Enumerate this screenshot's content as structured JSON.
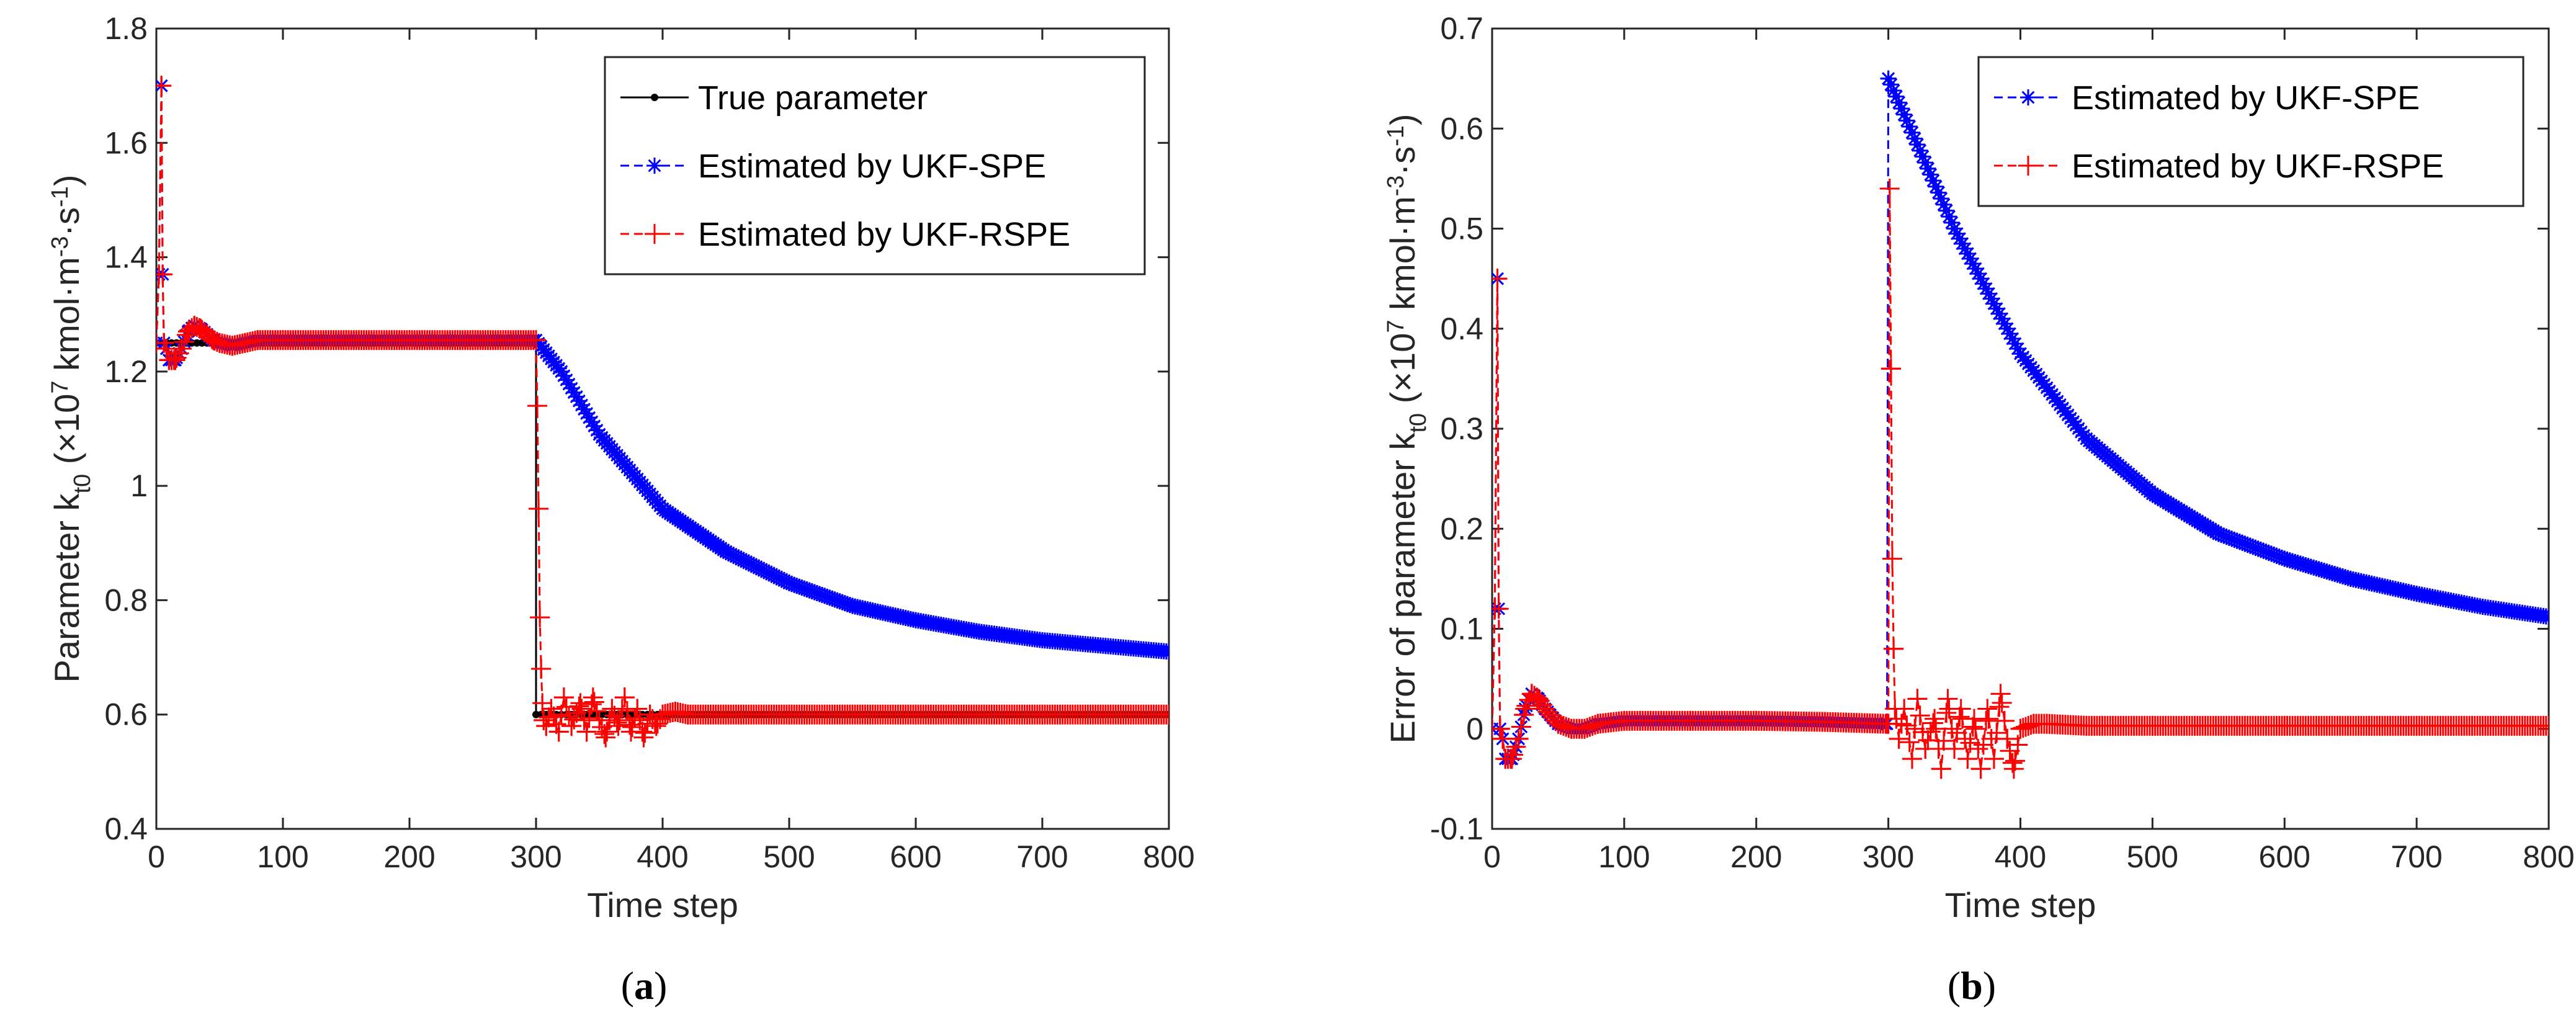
{
  "colors": {
    "true": "#000000",
    "spe": "#0000ff",
    "rspe": "#ff0000"
  },
  "chart_data": [
    {
      "type": "line",
      "panel_label": "a",
      "xlabel": "Time step",
      "ylabel": "Parameter k",
      "ylabel_sub": "t0",
      "ylabel_units": " (×10",
      "ylabel_exp": "7",
      "ylabel_units2": " kmol·m",
      "ylabel_exp2": "-3",
      "ylabel_units3": "·s",
      "ylabel_exp3": "-1",
      "ylabel_close": ")",
      "xlim": [
        0,
        800
      ],
      "ylim": [
        0.4,
        1.8
      ],
      "xticks": [
        0,
        100,
        200,
        300,
        400,
        500,
        600,
        700,
        800
      ],
      "yticks": [
        0.4,
        0.6,
        0.8,
        1,
        1.2,
        1.4,
        1.6,
        1.8
      ],
      "xtick_labels": [
        "0",
        "100",
        "200",
        "300",
        "400",
        "500",
        "600",
        "700",
        "800"
      ],
      "ytick_labels": [
        "0.4",
        "0.6",
        "0.8",
        "1",
        "1.2",
        "1.4",
        "1.6",
        "1.8"
      ],
      "legend_position": "top-right",
      "series": [
        {
          "name": "True parameter",
          "style": "true",
          "x": [
            0,
            300,
            300,
            800
          ],
          "y": [
            1.25,
            1.25,
            0.6,
            0.6
          ]
        },
        {
          "name": "Estimated by UKF-SPE",
          "style": "spe",
          "x": [
            0,
            2,
            4,
            5,
            6,
            8,
            10,
            15,
            20,
            25,
            30,
            35,
            40,
            45,
            50,
            60,
            70,
            80,
            100,
            150,
            200,
            250,
            300,
            320,
            350,
            400,
            450,
            500,
            550,
            600,
            650,
            700,
            750,
            800
          ],
          "y": [
            1.25,
            1.37,
            1.7,
            1.37,
            1.25,
            1.24,
            1.22,
            1.22,
            1.24,
            1.27,
            1.28,
            1.275,
            1.265,
            1.255,
            1.25,
            1.245,
            1.25,
            1.255,
            1.255,
            1.255,
            1.255,
            1.255,
            1.255,
            1.2,
            1.09,
            0.96,
            0.885,
            0.83,
            0.79,
            0.765,
            0.745,
            0.73,
            0.72,
            0.71
          ]
        },
        {
          "name": "Estimated by UKF-RSPE",
          "style": "rspe",
          "x": [
            0,
            2,
            4,
            5,
            6,
            8,
            10,
            15,
            20,
            25,
            30,
            35,
            40,
            45,
            50,
            60,
            70,
            80,
            100,
            150,
            200,
            250,
            300,
            301,
            302,
            303,
            304,
            305,
            306,
            308,
            312,
            318,
            322,
            328,
            335,
            340,
            345,
            350,
            355,
            360,
            365,
            370,
            375,
            380,
            385,
            390,
            395,
            400,
            410,
            420,
            450,
            500,
            600,
            700,
            800
          ],
          "y": [
            1.25,
            1.37,
            1.7,
            1.37,
            1.25,
            1.24,
            1.22,
            1.22,
            1.24,
            1.27,
            1.28,
            1.275,
            1.265,
            1.255,
            1.25,
            1.245,
            1.25,
            1.255,
            1.255,
            1.255,
            1.255,
            1.255,
            1.255,
            1.14,
            0.96,
            0.77,
            0.68,
            0.62,
            0.59,
            0.58,
            0.61,
            0.57,
            0.63,
            0.58,
            0.62,
            0.57,
            0.63,
            0.59,
            0.56,
            0.61,
            0.58,
            0.63,
            0.57,
            0.61,
            0.56,
            0.6,
            0.58,
            0.6,
            0.605,
            0.6,
            0.6,
            0.6,
            0.6,
            0.6,
            0.6
          ]
        }
      ]
    },
    {
      "type": "line",
      "panel_label": "b",
      "xlabel": "Time step",
      "ylabel": "Error of parameter k",
      "ylabel_sub": "t0",
      "ylabel_units": " (×10",
      "ylabel_exp": "7",
      "ylabel_units2": " kmol·m",
      "ylabel_exp2": "-3",
      "ylabel_units3": "·s",
      "ylabel_exp3": "-1",
      "ylabel_close": ")",
      "xlim": [
        0,
        800
      ],
      "ylim": [
        -0.1,
        0.7
      ],
      "xticks": [
        0,
        100,
        200,
        300,
        400,
        500,
        600,
        700,
        800
      ],
      "yticks": [
        -0.1,
        0,
        0.1,
        0.2,
        0.3,
        0.4,
        0.5,
        0.6,
        0.7
      ],
      "xtick_labels": [
        "0",
        "100",
        "200",
        "300",
        "400",
        "500",
        "600",
        "700",
        "800"
      ],
      "ytick_labels": [
        "-0.1",
        "0",
        "0.1",
        "0.2",
        "0.3",
        "0.4",
        "0.5",
        "0.6",
        "0.7"
      ],
      "legend_position": "top-right",
      "series": [
        {
          "name": "Estimated by UKF-SPE",
          "style": "spe",
          "x": [
            0,
            2,
            4,
            5,
            6,
            8,
            10,
            15,
            20,
            25,
            30,
            35,
            40,
            50,
            60,
            70,
            80,
            100,
            150,
            200,
            250,
            299,
            300,
            310,
            330,
            350,
            400,
            450,
            500,
            550,
            600,
            650,
            700,
            750,
            800
          ],
          "y": [
            0.0,
            0.12,
            0.45,
            0.12,
            0.0,
            -0.01,
            -0.03,
            -0.03,
            -0.01,
            0.02,
            0.035,
            0.03,
            0.02,
            0.005,
            0.0,
            0.0,
            0.005,
            0.008,
            0.008,
            0.008,
            0.007,
            0.005,
            0.65,
            0.62,
            0.56,
            0.5,
            0.375,
            0.29,
            0.235,
            0.195,
            0.17,
            0.15,
            0.135,
            0.122,
            0.112
          ]
        },
        {
          "name": "Estimated by UKF-RSPE",
          "style": "rspe",
          "x": [
            0,
            2,
            4,
            5,
            6,
            8,
            10,
            15,
            20,
            25,
            30,
            35,
            40,
            50,
            60,
            70,
            80,
            100,
            150,
            200,
            250,
            299,
            300,
            301,
            302,
            303,
            304,
            305,
            308,
            312,
            318,
            322,
            328,
            335,
            340,
            345,
            350,
            355,
            360,
            365,
            370,
            375,
            380,
            385,
            390,
            395,
            400,
            410,
            420,
            450,
            500,
            600,
            700,
            800
          ],
          "y": [
            0.0,
            0.12,
            0.45,
            0.12,
            0.0,
            -0.01,
            -0.03,
            -0.03,
            -0.01,
            0.02,
            0.035,
            0.03,
            0.02,
            0.005,
            0.0,
            0.0,
            0.005,
            0.008,
            0.008,
            0.008,
            0.007,
            0.005,
            0.005,
            0.54,
            0.36,
            0.17,
            0.08,
            0.02,
            -0.01,
            0.02,
            -0.03,
            0.03,
            -0.02,
            0.01,
            -0.04,
            0.03,
            -0.02,
            0.02,
            -0.03,
            0.01,
            -0.04,
            0.02,
            -0.03,
            0.035,
            -0.01,
            -0.04,
            0.0,
            0.005,
            0.005,
            0.003,
            0.003,
            0.003,
            0.003,
            0.003
          ]
        }
      ]
    }
  ]
}
